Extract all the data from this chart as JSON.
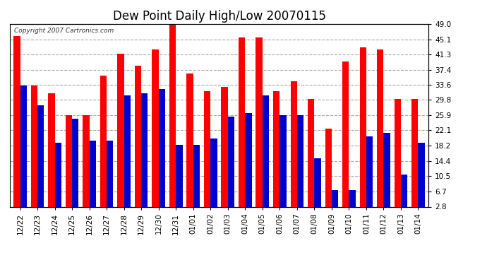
{
  "title": "Dew Point Daily High/Low 20070115",
  "copyright": "Copyright 2007 Cartronics.com",
  "categories": [
    "12/22",
    "12/23",
    "12/24",
    "12/25",
    "12/26",
    "12/27",
    "12/28",
    "12/29",
    "12/30",
    "12/31",
    "01/01",
    "01/02",
    "01/03",
    "01/04",
    "01/05",
    "01/06",
    "01/07",
    "01/08",
    "01/09",
    "01/10",
    "01/11",
    "01/12",
    "01/13",
    "01/14"
  ],
  "highs": [
    46.0,
    33.5,
    31.5,
    26.0,
    26.0,
    36.0,
    41.5,
    38.5,
    42.5,
    49.0,
    36.5,
    32.0,
    33.0,
    45.5,
    45.5,
    32.0,
    34.5,
    30.0,
    22.5,
    39.5,
    43.0,
    42.5,
    30.0,
    30.0
  ],
  "lows": [
    33.5,
    28.5,
    19.0,
    25.0,
    19.5,
    19.5,
    31.0,
    31.5,
    32.5,
    18.5,
    18.5,
    20.0,
    25.5,
    26.5,
    31.0,
    26.0,
    26.0,
    15.0,
    7.0,
    7.0,
    20.5,
    21.5,
    11.0,
    19.0
  ],
  "high_color": "#ff0000",
  "low_color": "#0000cc",
  "bg_color": "#ffffff",
  "plot_bg_color": "#ffffff",
  "grid_color": "#aaaaaa",
  "yticks": [
    2.8,
    6.7,
    10.5,
    14.4,
    18.2,
    22.1,
    25.9,
    29.8,
    33.6,
    37.4,
    41.3,
    45.1,
    49.0
  ],
  "ymin": 2.8,
  "ymax": 49.0,
  "bar_width": 0.38,
  "title_fontsize": 12
}
